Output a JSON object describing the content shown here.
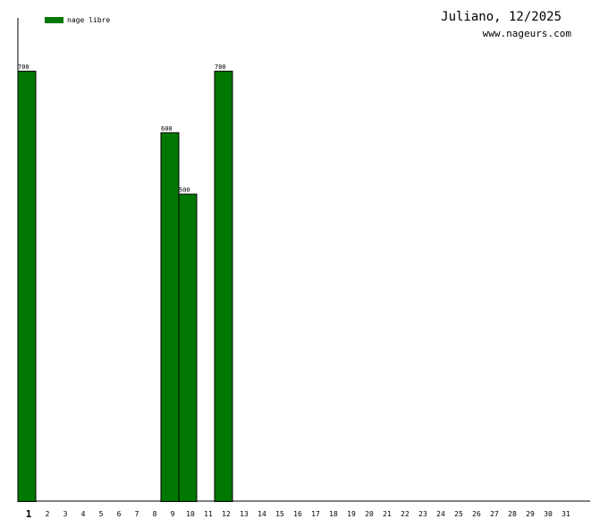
{
  "chart_data": {
    "type": "bar",
    "title": "Juliano, 12/2025",
    "subtitle": "www.nageurs.com",
    "categories": [
      "1",
      "2",
      "3",
      "4",
      "5",
      "6",
      "7",
      "8",
      "9",
      "10",
      "11",
      "12",
      "13",
      "14",
      "15",
      "16",
      "17",
      "18",
      "19",
      "20",
      "21",
      "22",
      "23",
      "24",
      "25",
      "26",
      "27",
      "28",
      "29",
      "30",
      "31"
    ],
    "series": [
      {
        "name": "nage libre",
        "color": "#007700",
        "values": [
          700,
          null,
          null,
          null,
          null,
          null,
          null,
          null,
          600,
          500,
          null,
          700,
          null,
          null,
          null,
          null,
          null,
          null,
          null,
          null,
          null,
          null,
          null,
          null,
          null,
          null,
          null,
          null,
          null,
          null,
          null
        ]
      }
    ],
    "ylim": [
      0,
      786
    ]
  }
}
